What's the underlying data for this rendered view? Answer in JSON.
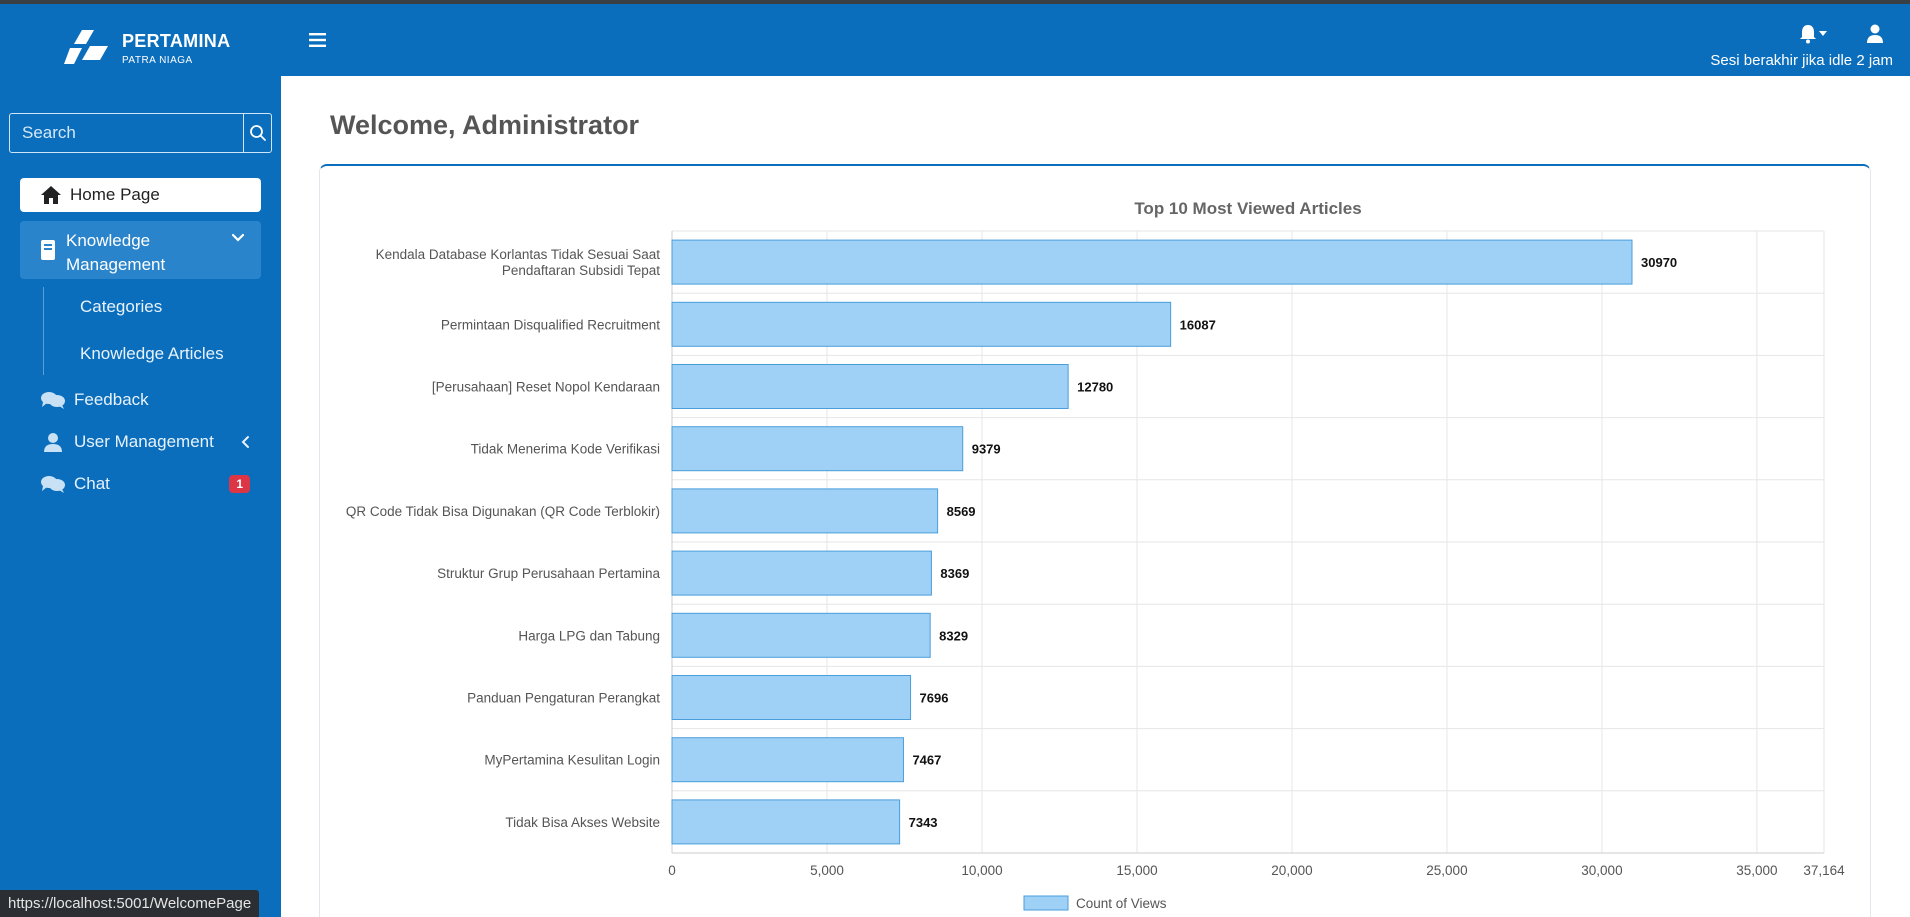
{
  "brand": {
    "name": "PERTAMINA",
    "sub": "PATRA NIAGA"
  },
  "search": {
    "placeholder": "Search"
  },
  "sidebar": {
    "home": "Home Page",
    "knowledge_management": "Knowledge Management",
    "sub_items": [
      "Categories",
      "Knowledge Articles"
    ],
    "feedback": "Feedback",
    "user_management": "User Management",
    "chat": "Chat",
    "chat_badge": "1"
  },
  "header": {
    "session_text": "Sesi berakhir jika idle 2 jam"
  },
  "main": {
    "welcome": "Welcome, Administrator"
  },
  "status_url": "https://localhost:5001/WelcomePage",
  "colors": {
    "primary": "#0a6ebd",
    "bar_fill": "#9fd0f5",
    "bar_stroke": "#4a9edb",
    "badge": "#dc3545"
  },
  "chart_data": {
    "type": "bar",
    "orientation": "horizontal",
    "title": "Top 10 Most Viewed Articles",
    "categories": [
      [
        "Kendala Database Korlantas Tidak Sesuai Saat",
        "Pendaftaran Subsidi Tepat"
      ],
      [
        "Permintaan Disqualified Recruitment"
      ],
      [
        "[Perusahaan] Reset Nopol Kendaraan"
      ],
      [
        "Tidak Menerima Kode Verifikasi"
      ],
      [
        "QR Code Tidak Bisa Digunakan (QR Code Terblokir)"
      ],
      [
        "Struktur Grup Perusahaan Pertamina"
      ],
      [
        "Harga LPG dan Tabung"
      ],
      [
        "Panduan Pengaturan Perangkat"
      ],
      [
        "MyPertamina Kesulitan Login"
      ],
      [
        "Tidak Bisa Akses Website"
      ]
    ],
    "series": [
      {
        "name": "Count of Views",
        "values": [
          30970,
          16087,
          12780,
          9379,
          8569,
          8369,
          8329,
          7696,
          7467,
          7343
        ]
      }
    ],
    "xlim": [
      0,
      37164
    ],
    "xticks": [
      0,
      5000,
      10000,
      15000,
      20000,
      25000,
      30000,
      35000,
      37164
    ],
    "xtick_labels": [
      "0",
      "5,000",
      "10,000",
      "15,000",
      "20,000",
      "25,000",
      "30,000",
      "35,000",
      "37,164"
    ],
    "grid": true,
    "legend": "bottom"
  }
}
